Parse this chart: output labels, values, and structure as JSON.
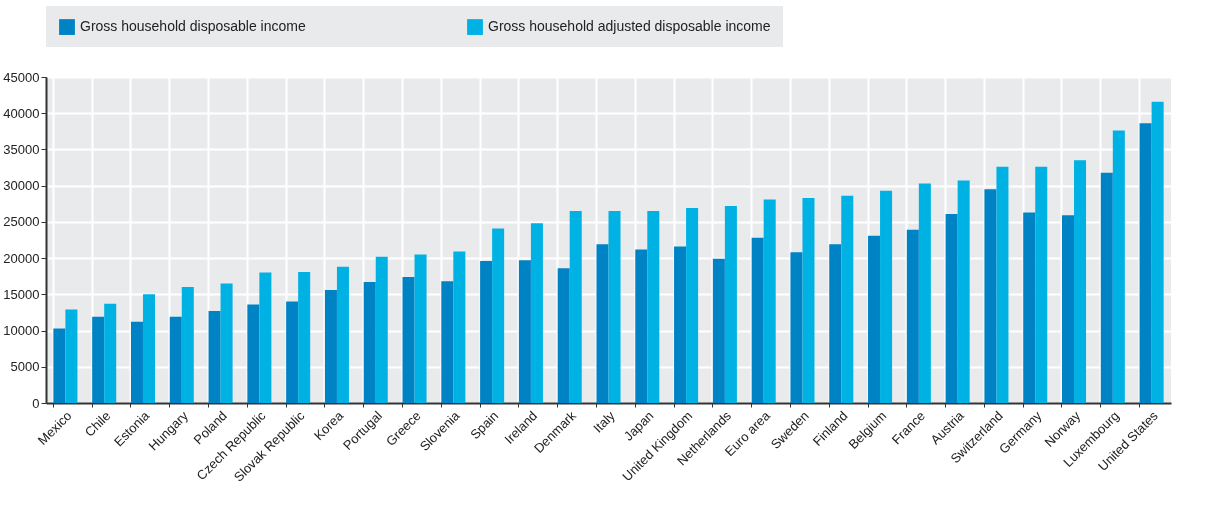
{
  "chart_data": {
    "type": "bar",
    "categories": [
      "Mexico",
      "Chile",
      "Estonia",
      "Hungary",
      "Poland",
      "Czech Republic",
      "Slovak Republic",
      "Korea",
      "Portugal",
      "Greece",
      "Slovenia",
      "Spain",
      "Ireland",
      "Denmark",
      "Italy",
      "Japan",
      "United Kingdom",
      "Netherlands",
      "Euro area",
      "Sweden",
      "Finland",
      "Belgium",
      "France",
      "Austria",
      "Switzerland",
      "Germany",
      "Norway",
      "Luxembourg",
      "United States"
    ],
    "series": [
      {
        "name": "Gross household disposable income",
        "color": "#0083c5",
        "values": [
          10300,
          11900,
          11200,
          11900,
          12700,
          13600,
          14000,
          15600,
          16700,
          17400,
          16800,
          19600,
          19700,
          18600,
          21900,
          21200,
          21600,
          19900,
          22800,
          20800,
          21900,
          23100,
          23900,
          26100,
          29500,
          26300,
          25900,
          31800,
          38600
        ]
      },
      {
        "name": "Gross household adjusted disposable income",
        "color": "#00b2e3",
        "values": [
          12900,
          13700,
          15000,
          16000,
          16500,
          18000,
          18100,
          18800,
          20200,
          20500,
          20900,
          24100,
          24800,
          26500,
          26500,
          26500,
          26900,
          27200,
          28100,
          28300,
          28600,
          29300,
          30300,
          30700,
          32600,
          32600,
          33500,
          37600,
          41600
        ]
      }
    ],
    "ylim": [
      0,
      45000
    ],
    "yticks": [
      0,
      5000,
      10000,
      15000,
      20000,
      25000,
      30000,
      35000,
      40000,
      45000
    ],
    "grid": true,
    "legend": "top"
  }
}
